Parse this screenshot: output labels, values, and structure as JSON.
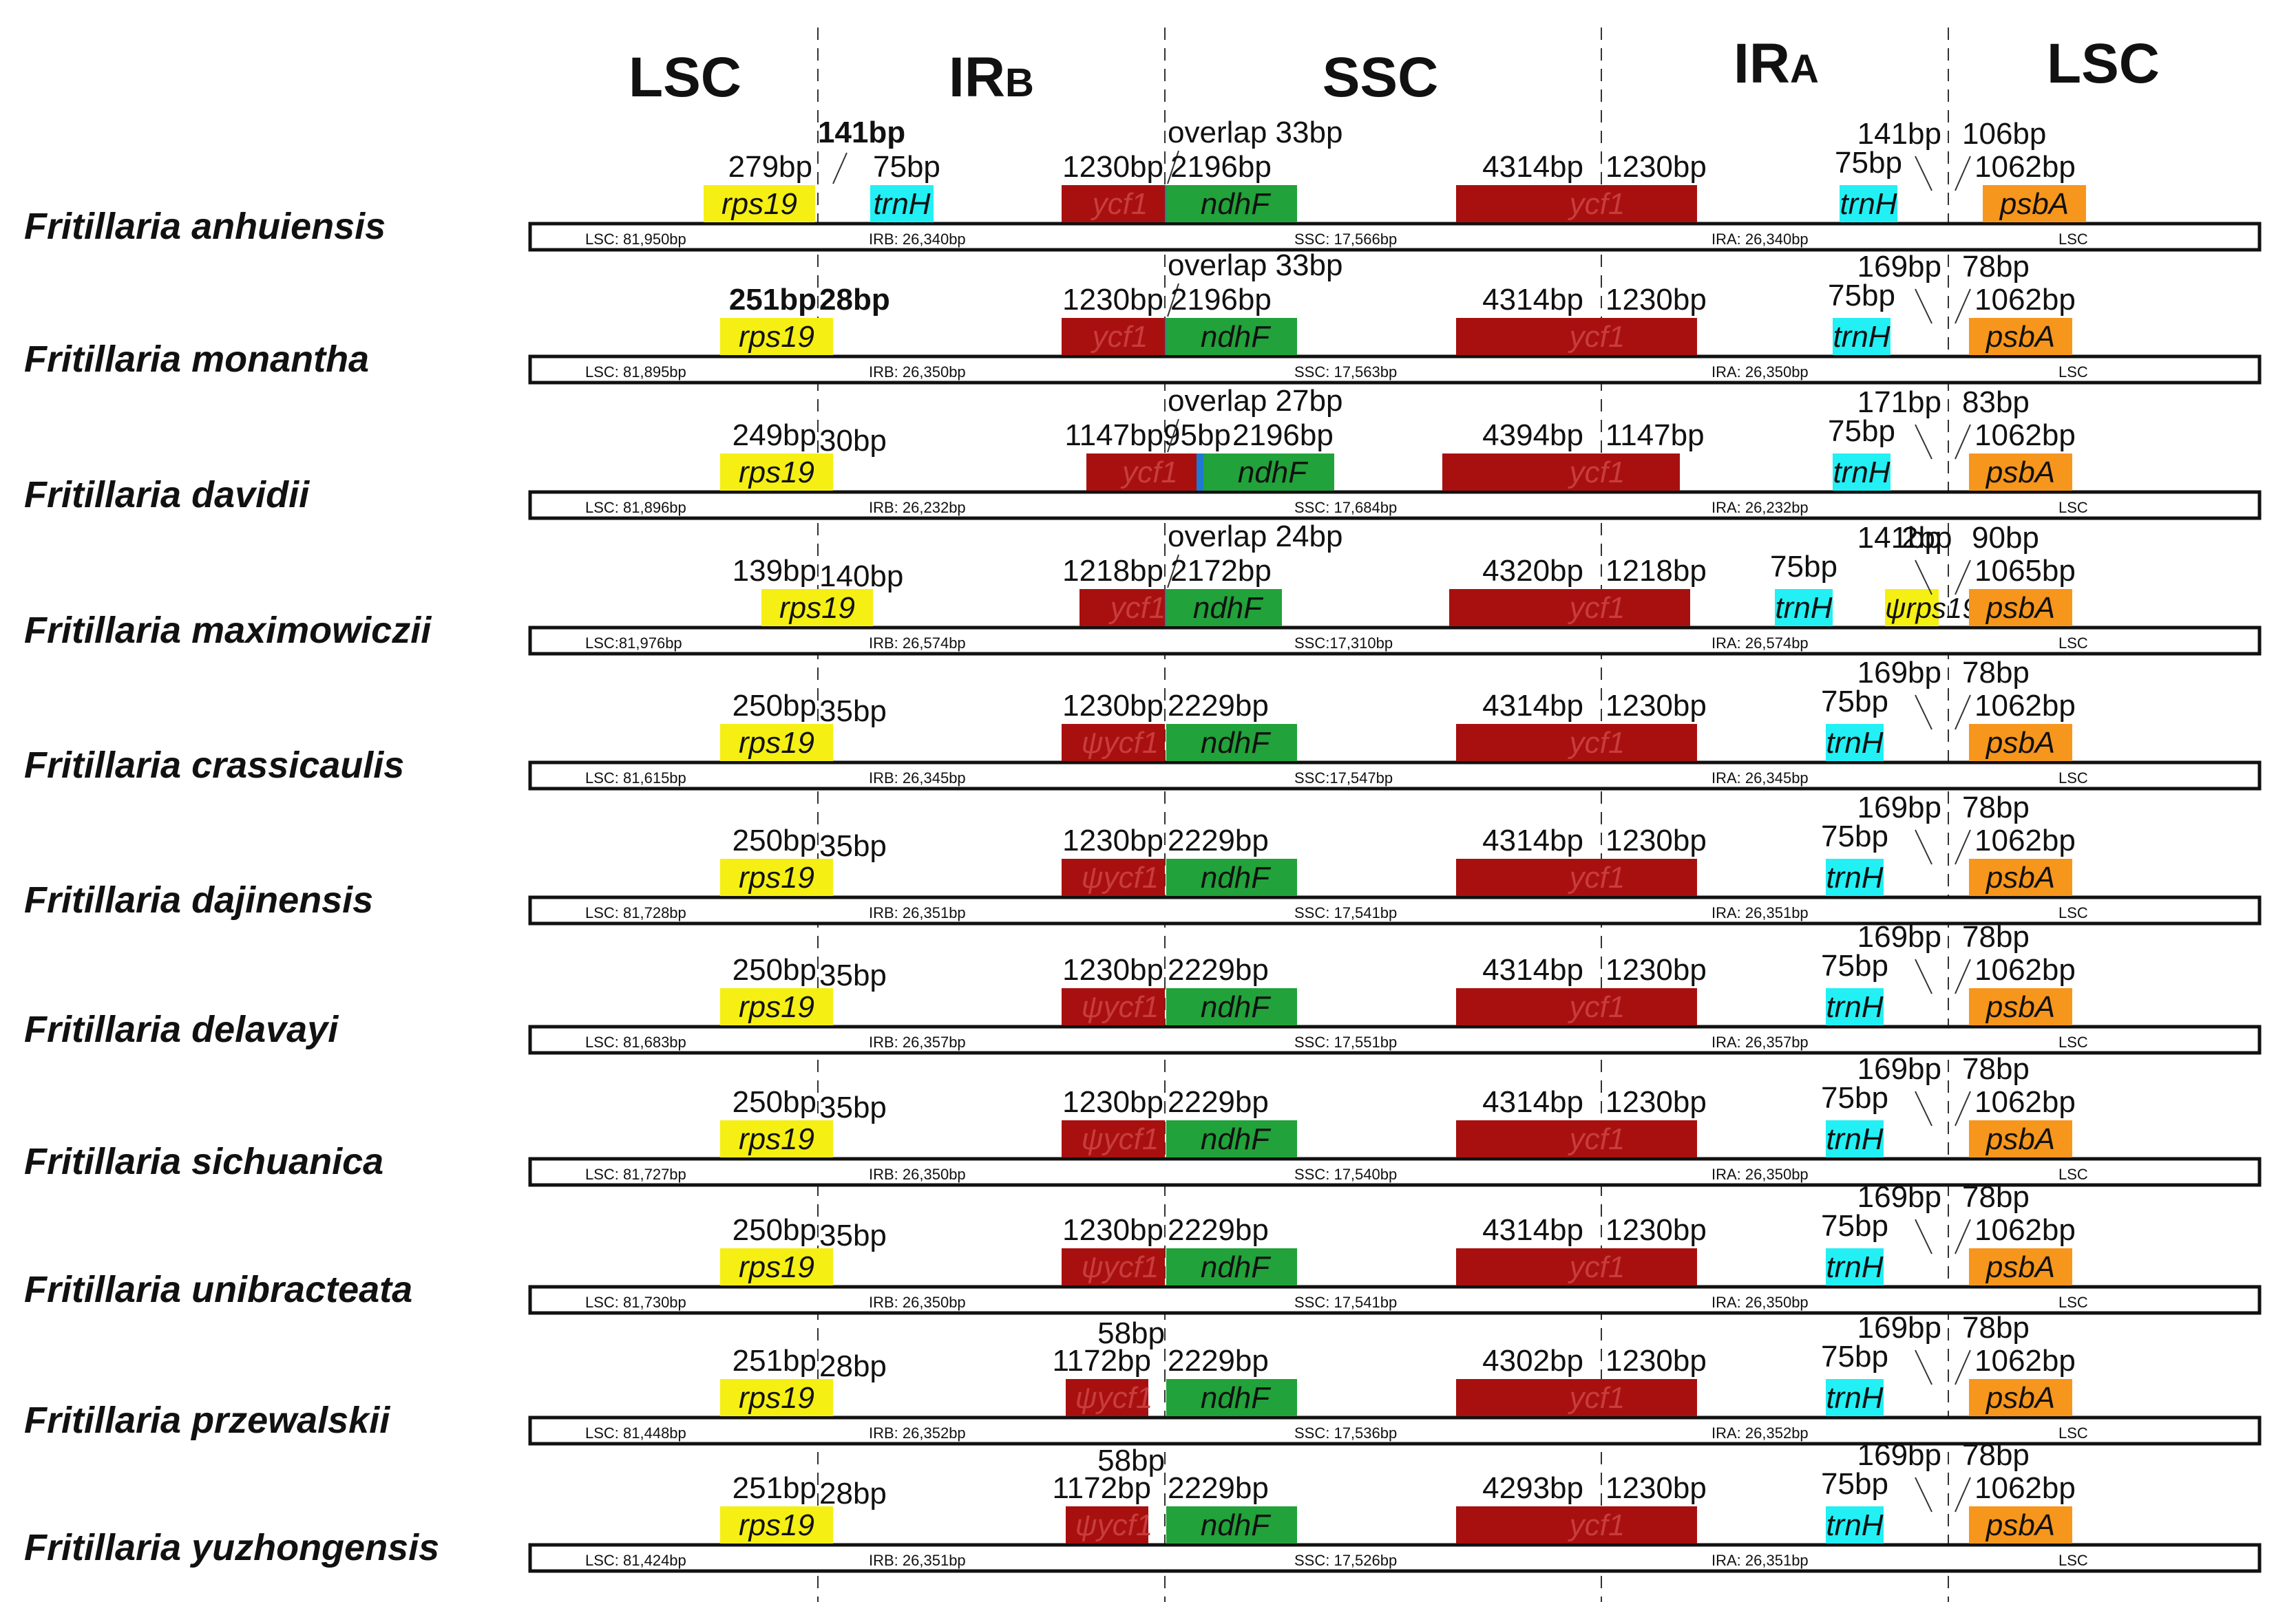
{
  "header": {
    "regions": [
      {
        "main": "LSC",
        "sub": ""
      },
      {
        "main": "IR",
        "sub": "B"
      },
      {
        "main": "SSC",
        "sub": ""
      },
      {
        "main": "IR",
        "sub": "A"
      },
      {
        "main": "LSC",
        "sub": ""
      }
    ]
  },
  "colors": {
    "rps19": "#f5ef14",
    "trnH": "#22f0f5",
    "ycf1": "#a81010",
    "ndhF": "#22a23a",
    "psbA": "#f7961c",
    "overlap": "#1f78d2",
    "ycf1_text": "#c83c3c"
  },
  "genes": {
    "rps19": "rps19",
    "trnH": "trnH",
    "ycf1": "ycf1",
    "psi_ycf1": "ψycf1",
    "ndhF": "ndhF",
    "psbA": "psbA",
    "psi_rps19": "ψrps19"
  },
  "species": [
    {
      "name": "Fritillaria anhuiensis",
      "track": {
        "lsc": "LSC: 81,950bp",
        "irb": "IRB: 26,340bp",
        "ssc": "SSC: 17,566bp",
        "ira": "IRA: 26,340bp",
        "lsc_end": "LSC"
      },
      "ycf1_left": "ycf1",
      "labels": {
        "rps19_len": "279bp",
        "rps19_span": "141bp",
        "trnH_b": "75bp",
        "ycf1_left_len": "1230bp",
        "overlap": "overlap 33bp",
        "ndhF_len": "2196bp",
        "ycf1_ssc": "4314bp",
        "ycf1_ira": "1230bp",
        "trnH_a": "75bp",
        "trnH_gap": "141bp",
        "psbA_gap": "106bp",
        "psbA_len": "1062bp"
      }
    },
    {
      "name": "Fritillaria monantha",
      "track": {
        "lsc": "LSC: 81,895bp",
        "irb": "IRB: 26,350bp",
        "ssc": "SSC: 17,563bp",
        "ira": "IRA: 26,350bp",
        "lsc_end": "LSC"
      },
      "ycf1_left": "ycf1",
      "labels": {
        "rps19_len": "251bp",
        "rps19_ir": "28bp",
        "ycf1_left_len": "1230bp",
        "overlap": "overlap 33bp",
        "ndhF_len": "2196bp",
        "ycf1_ssc": "4314bp",
        "ycf1_ira": "1230bp",
        "trnH_a": "75bp",
        "trnH_gap": "169bp",
        "psbA_gap": "78bp",
        "psbA_len": "1062bp"
      }
    },
    {
      "name": "Fritillaria davidii",
      "track": {
        "lsc": "LSC: 81,896bp",
        "irb": "IRB: 26,232bp",
        "ssc": "SSC: 17,684bp",
        "ira": "IRA: 26,232bp",
        "lsc_end": "LSC"
      },
      "ycf1_left": "ycf1",
      "labels": {
        "rps19_len": "249bp",
        "rps19_ir": "30bp",
        "ycf1_left_len": "1147bp",
        "ycf1_gap": "95bp",
        "overlap": "overlap 27bp",
        "ndhF_len": "2196bp",
        "ycf1_ssc": "4394bp",
        "ycf1_ira": "1147bp",
        "trnH_a": "75bp",
        "trnH_gap": "171bp",
        "psbA_gap": "83bp",
        "psbA_len": "1062bp"
      }
    },
    {
      "name": "Fritillaria maximowiczii",
      "track": {
        "lsc": "LSC:81,976bp",
        "irb": "IRB: 26,574bp",
        "ssc": "SSC:17,310bp",
        "ira": "IRA: 26,574bp",
        "lsc_end": "LSC"
      },
      "ycf1_left": "ycf1",
      "labels": {
        "rps19_len": "139bp",
        "rps19_ir": "140bp",
        "ycf1_left_len": "1218bp",
        "overlap": "overlap 24bp",
        "ndhF_len": "2172bp",
        "ycf1_ssc": "4320bp",
        "ycf1_ira": "1218bp",
        "trnH_a": "75bp",
        "trnH_gap": "141bp",
        "psi_rps19_len": "2bp",
        "psbA_gap": "90bp",
        "psbA_len": "1065bp"
      }
    },
    {
      "name": "Fritillaria crassicaulis",
      "track": {
        "lsc": "LSC: 81,615bp",
        "irb": "IRB: 26,345bp",
        "ssc": "SSC:17,547bp",
        "ira": "IRA: 26,345bp",
        "lsc_end": "LSC"
      },
      "ycf1_left": "ψycf1",
      "labels": {
        "rps19_len": "250bp",
        "rps19_ir": "35bp",
        "ycf1_left_len": "1230bp",
        "ndhF_len": "2229bp",
        "ycf1_ssc": "4314bp",
        "ycf1_ira": "1230bp",
        "trnH_a": "75bp",
        "trnH_gap": "169bp",
        "psbA_gap": "78bp",
        "psbA_len": "1062bp"
      }
    },
    {
      "name": "Fritillaria dajinensis",
      "track": {
        "lsc": "LSC: 81,728bp",
        "irb": "IRB: 26,351bp",
        "ssc": "SSC: 17,541bp",
        "ira": "IRA: 26,351bp",
        "lsc_end": "LSC"
      },
      "ycf1_left": "ψycf1",
      "labels": {
        "rps19_len": "250bp",
        "rps19_ir": "35bp",
        "ycf1_left_len": "1230bp",
        "ndhF_len": "2229bp",
        "ycf1_ssc": "4314bp",
        "ycf1_ira": "1230bp",
        "trnH_a": "75bp",
        "trnH_gap": "169bp",
        "psbA_gap": "78bp",
        "psbA_len": "1062bp"
      }
    },
    {
      "name": "Fritillaria delavayi",
      "track": {
        "lsc": "LSC: 81,683bp",
        "irb": "IRB: 26,357bp",
        "ssc": "SSC: 17,551bp",
        "ira": "IRA: 26,357bp",
        "lsc_end": "LSC"
      },
      "ycf1_left": "ψycf1",
      "labels": {
        "rps19_len": "250bp",
        "rps19_ir": "35bp",
        "ycf1_left_len": "1230bp",
        "ndhF_len": "2229bp",
        "ycf1_ssc": "4314bp",
        "ycf1_ira": "1230bp",
        "trnH_a": "75bp",
        "trnH_gap": "169bp",
        "psbA_gap": "78bp",
        "psbA_len": "1062bp"
      }
    },
    {
      "name": "Fritillaria sichuanica",
      "track": {
        "lsc": "LSC: 81,727bp",
        "irb": "IRB: 26,350bp",
        "ssc": "SSC: 17,540bp",
        "ira": "IRA: 26,350bp",
        "lsc_end": "LSC"
      },
      "ycf1_left": "ψycf1",
      "labels": {
        "rps19_len": "250bp",
        "rps19_ir": "35bp",
        "ycf1_left_len": "1230bp",
        "ndhF_len": "2229bp",
        "ycf1_ssc": "4314bp",
        "ycf1_ira": "1230bp",
        "trnH_a": "75bp",
        "trnH_gap": "169bp",
        "psbA_gap": "78bp",
        "psbA_len": "1062bp"
      }
    },
    {
      "name": "Fritillaria unibracteata",
      "track": {
        "lsc": "LSC: 81,730bp",
        "irb": "IRB: 26,350bp",
        "ssc": "SSC: 17,541bp",
        "ira": "IRA: 26,350bp",
        "lsc_end": "LSC"
      },
      "ycf1_left": "ψycf1",
      "labels": {
        "rps19_len": "250bp",
        "rps19_ir": "35bp",
        "ycf1_left_len": "1230bp",
        "ndhF_len": "2229bp",
        "ycf1_ssc": "4314bp",
        "ycf1_ira": "1230bp",
        "trnH_a": "75bp",
        "trnH_gap": "169bp",
        "psbA_gap": "78bp",
        "psbA_len": "1062bp"
      }
    },
    {
      "name": "Fritillaria przewalskii",
      "track": {
        "lsc": "LSC: 81,448bp",
        "irb": "IRB: 26,352bp",
        "ssc": "SSC: 17,536bp",
        "ira": "IRA: 26,352bp",
        "lsc_end": "LSC"
      },
      "ycf1_left": "ψycf1",
      "labels": {
        "rps19_len": "251bp",
        "rps19_ir": "28bp",
        "ycf1_left_len": "1172bp",
        "ycf1_gap": "58bp",
        "ndhF_len": "2229bp",
        "ycf1_ssc": "4302bp",
        "ycf1_ira": "1230bp",
        "trnH_a": "75bp",
        "trnH_gap": "169bp",
        "psbA_gap": "78bp",
        "psbA_len": "1062bp"
      }
    },
    {
      "name": "Fritillaria yuzhongensis",
      "track": {
        "lsc": "LSC: 81,424bp",
        "irb": "IRB: 26,351bp",
        "ssc": "SSC: 17,526bp",
        "ira": "IRA: 26,351bp",
        "lsc_end": "LSC"
      },
      "ycf1_left": "ψycf1",
      "labels": {
        "rps19_len": "251bp",
        "rps19_ir": "28bp",
        "ycf1_left_len": "1172bp",
        "ycf1_gap": "58bp",
        "ndhF_len": "2229bp",
        "ycf1_ssc": "4293bp",
        "ycf1_ira": "1230bp",
        "trnH_a": "75bp",
        "trnH_gap": "169bp",
        "psbA_gap": "78bp",
        "psbA_len": "1062bp"
      }
    }
  ]
}
